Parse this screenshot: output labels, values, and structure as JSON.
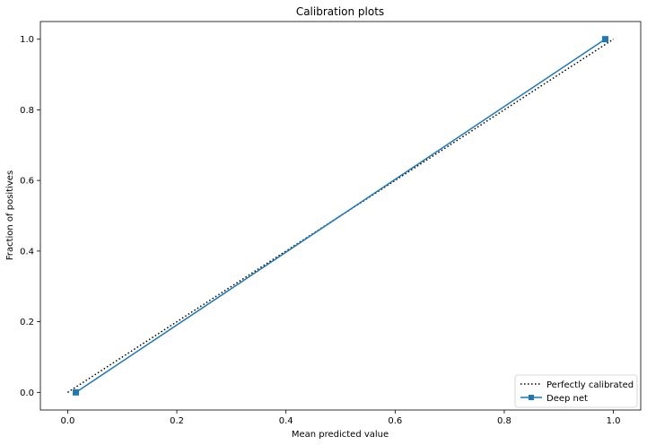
{
  "chart_data": {
    "type": "line",
    "title": "Calibration plots",
    "xlabel": "Mean predicted value",
    "ylabel": "Fraction of positives",
    "xlim": [
      -0.05,
      1.05
    ],
    "ylim": [
      -0.05,
      1.05
    ],
    "xticks": [
      "0.0",
      "0.2",
      "0.4",
      "0.6",
      "0.8",
      "1.0"
    ],
    "yticks": [
      "0.0",
      "0.2",
      "0.4",
      "0.6",
      "0.8",
      "1.0"
    ],
    "grid": false,
    "legend_position": "lower right",
    "series": [
      {
        "name": "Perfectly calibrated",
        "style": "dotted",
        "color": "#000000",
        "marker": "none",
        "x": [
          0,
          1
        ],
        "y": [
          0,
          1
        ]
      },
      {
        "name": "Deep net",
        "style": "solid",
        "color": "#1f77b4",
        "marker": "square",
        "x": [
          0.015,
          0.985
        ],
        "y": [
          0.0,
          1.0
        ]
      }
    ]
  }
}
